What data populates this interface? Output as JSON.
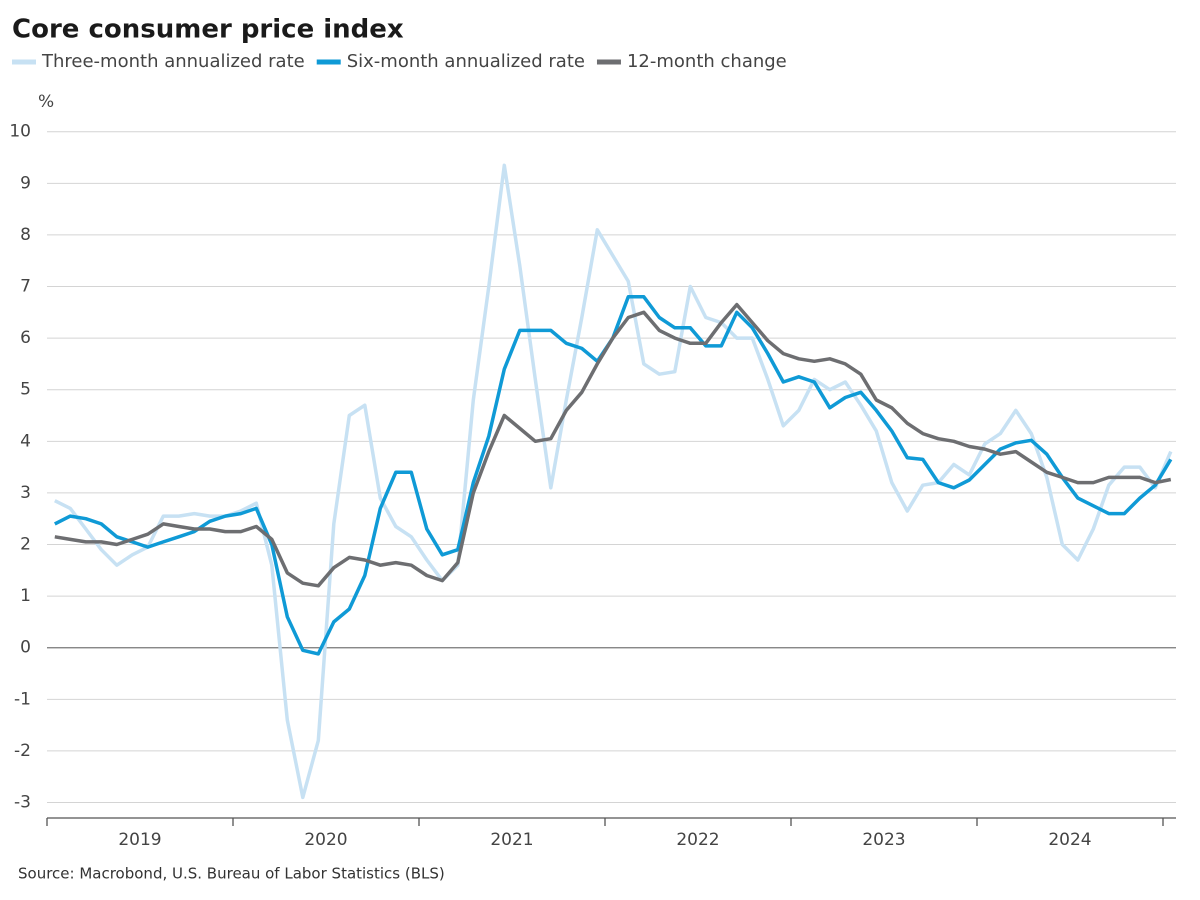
{
  "chart_data": {
    "type": "line",
    "title": "Core consumer price index",
    "y_label": "%",
    "source": "Source: Macrobond, U.S. Bureau of Labor Statistics (BLS)",
    "categories": [
      null,
      null,
      null,
      null,
      null,
      null,
      "2019",
      null,
      null,
      null,
      null,
      null,
      null,
      null,
      null,
      null,
      null,
      null,
      "2020",
      null,
      null,
      null,
      null,
      null,
      null,
      null,
      null,
      null,
      null,
      null,
      "2021",
      null,
      null,
      null,
      null,
      null,
      null,
      null,
      null,
      null,
      null,
      null,
      "2022",
      null,
      null,
      null,
      null,
      null,
      null,
      null,
      null,
      null,
      null,
      null,
      "2023",
      null,
      null,
      null,
      null,
      null,
      null,
      null,
      null,
      null,
      null,
      null,
      "2024",
      null,
      null,
      null,
      null,
      null,
      null
    ],
    "series": [
      {
        "name": "Three-month annualized rate",
        "color": "#c7e1f3",
        "values": [
          2.85,
          2.7,
          2.3,
          1.9,
          1.6,
          1.8,
          1.95,
          2.55,
          2.55,
          2.6,
          2.55,
          2.55,
          2.65,
          2.8,
          1.6,
          -1.4,
          -2.9,
          -1.8,
          2.4,
          4.5,
          4.7,
          2.9,
          2.35,
          2.15,
          1.7,
          1.3,
          1.6,
          4.8,
          7.0,
          9.35,
          7.4,
          5.2,
          3.1,
          4.8,
          6.4,
          8.1,
          7.6,
          7.1,
          5.5,
          5.3,
          5.35,
          7.0,
          6.4,
          6.3,
          6.0,
          6.0,
          5.2,
          4.3,
          4.6,
          5.2,
          5.0,
          5.15,
          4.7,
          4.2,
          3.2,
          2.65,
          3.15,
          3.2,
          3.55,
          3.35,
          3.95,
          4.15,
          4.6,
          4.15,
          3.3,
          2.0,
          1.7,
          2.3,
          3.15,
          3.5,
          3.5,
          3.1,
          3.8
        ]
      },
      {
        "name": "Six-month annualized rate",
        "color": "#0f9ad6",
        "values": [
          2.4,
          2.55,
          2.5,
          2.4,
          2.15,
          2.05,
          1.95,
          2.05,
          2.15,
          2.25,
          2.45,
          2.55,
          2.6,
          2.7,
          2.0,
          0.6,
          -0.05,
          -0.12,
          0.5,
          0.75,
          1.4,
          2.7,
          3.4,
          3.4,
          2.3,
          1.8,
          1.9,
          3.2,
          4.1,
          5.4,
          6.15,
          6.15,
          6.15,
          5.9,
          5.8,
          5.55,
          6.0,
          6.8,
          6.8,
          6.4,
          6.2,
          6.2,
          5.85,
          5.85,
          6.5,
          6.2,
          5.7,
          5.15,
          5.25,
          5.15,
          4.65,
          4.85,
          4.95,
          4.6,
          4.2,
          3.68,
          3.65,
          3.2,
          3.1,
          3.25,
          3.55,
          3.85,
          3.97,
          4.02,
          3.75,
          3.3,
          2.9,
          2.75,
          2.6,
          2.6,
          2.9,
          3.15,
          3.65
        ]
      },
      {
        "name": "12-month change",
        "color": "#6d6e71",
        "values": [
          2.15,
          2.1,
          2.05,
          2.05,
          2.0,
          2.1,
          2.2,
          2.4,
          2.35,
          2.3,
          2.3,
          2.25,
          2.25,
          2.35,
          2.1,
          1.45,
          1.25,
          1.2,
          1.55,
          1.75,
          1.7,
          1.6,
          1.65,
          1.6,
          1.4,
          1.3,
          1.65,
          3.0,
          3.8,
          4.5,
          4.25,
          4.0,
          4.05,
          4.6,
          4.95,
          5.5,
          6.0,
          6.4,
          6.5,
          6.15,
          6.0,
          5.9,
          5.9,
          6.3,
          6.65,
          6.3,
          5.95,
          5.7,
          5.6,
          5.55,
          5.6,
          5.5,
          5.3,
          4.8,
          4.65,
          4.35,
          4.15,
          4.05,
          4.0,
          3.9,
          3.85,
          3.75,
          3.8,
          3.6,
          3.4,
          3.3,
          3.2,
          3.2,
          3.3,
          3.3,
          3.3,
          3.2,
          3.26
        ]
      }
    ],
    "ylim": [
      -3.3,
      10.2
    ],
    "yticks": [
      -3,
      -2,
      -1,
      0,
      1,
      2,
      3,
      4,
      5,
      6,
      7,
      8,
      9,
      10
    ],
    "grid": true
  }
}
